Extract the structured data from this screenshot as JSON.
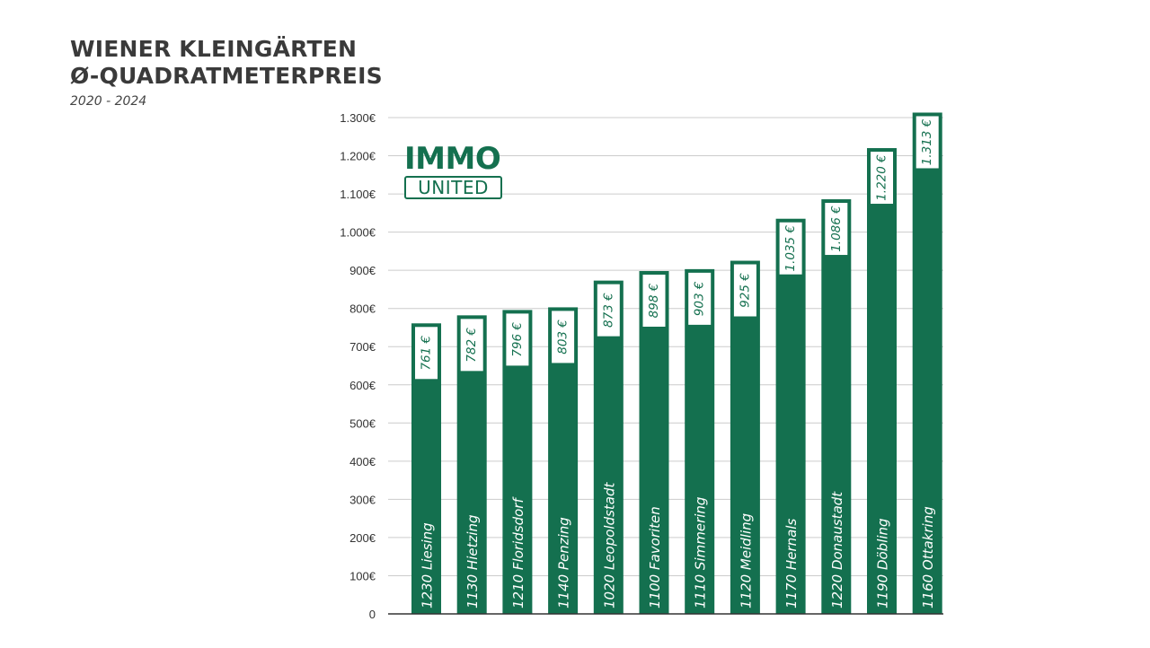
{
  "header": {
    "title_line1": "WIENER KLEINGÄRTEN",
    "title_line2": "Ø-QUADRATMETERPREIS",
    "subtitle": "2020 - 2024"
  },
  "logo": {
    "top": "IMMO",
    "bottom": "UNITED"
  },
  "colors": {
    "bar": "#14704f",
    "grid": "#cccccc",
    "axis": "#333333"
  },
  "chart_data": {
    "type": "bar",
    "title": "WIENER KLEINGÄRTEN Ø-QUADRATMETERPREIS",
    "subtitle": "2020 - 2024",
    "categories": [
      "1230 Liesing",
      "1130 Hietzing",
      "1210 Floridsdorf",
      "1140 Penzing",
      "1020 Leopoldstadt",
      "1100 Favoriten",
      "1110 Simmering",
      "1120 Meidling",
      "1170 Hernals",
      "1220 Donaustadt",
      "1190 Döbling",
      "1160 Ottakring"
    ],
    "values": [
      761,
      782,
      796,
      803,
      873,
      898,
      903,
      925,
      1035,
      1086,
      1220,
      1313
    ],
    "value_labels": [
      "761 €",
      "782 €",
      "796 €",
      "803 €",
      "873 €",
      "898 €",
      "903 €",
      "925 €",
      "1.035 €",
      "1.086 €",
      "1.220 €",
      "1.313 €"
    ],
    "ylim": [
      0,
      1300
    ],
    "yticks": [
      0,
      100,
      200,
      300,
      400,
      500,
      600,
      700,
      800,
      900,
      1000,
      1100,
      1200,
      1300
    ],
    "ytick_labels": [
      "0",
      "100€",
      "200€",
      "300€",
      "400€",
      "500€",
      "600€",
      "700€",
      "800€",
      "900€",
      "1.000€",
      "1.100€",
      "1.200€",
      "1.300€"
    ],
    "grid": true,
    "xlabel": "",
    "ylabel": ""
  }
}
